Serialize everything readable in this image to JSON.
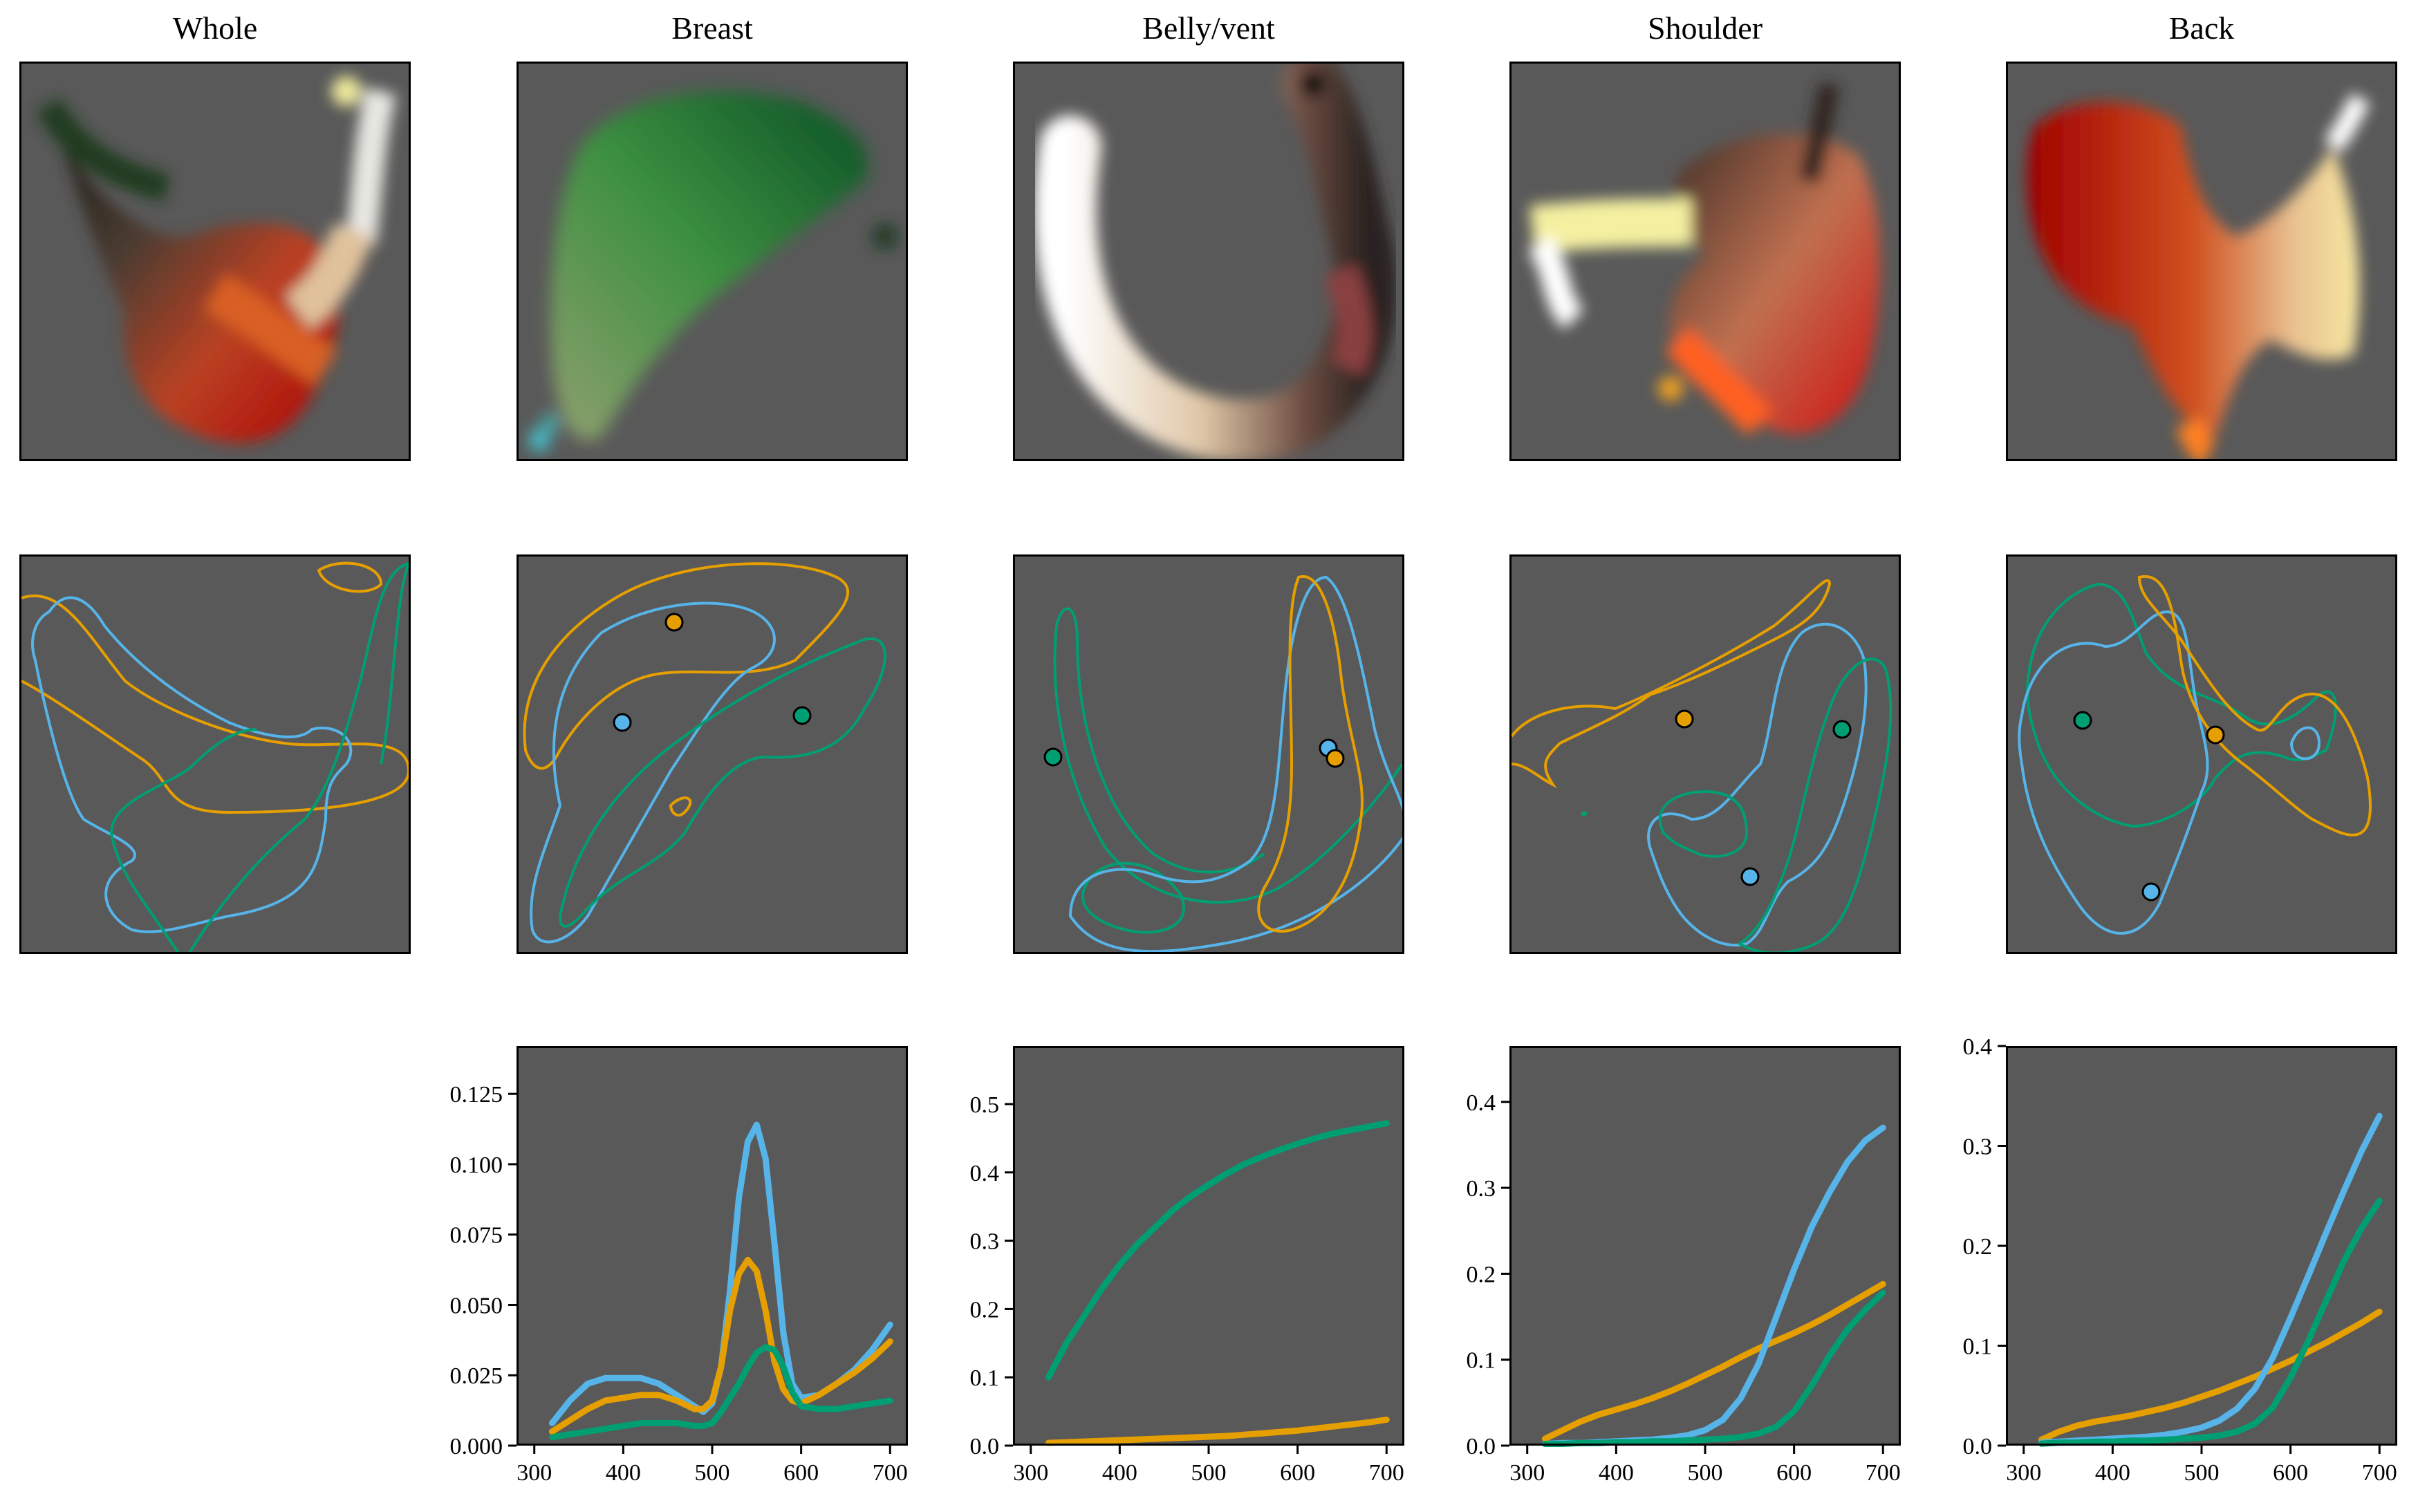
{
  "figure": {
    "columns": [
      {
        "key": "whole",
        "title": "Whole"
      },
      {
        "key": "breast",
        "title": "Breast"
      },
      {
        "key": "belly",
        "title": "Belly/vent"
      },
      {
        "key": "shoulder",
        "title": "Shoulder"
      },
      {
        "key": "back",
        "title": "Back"
      }
    ],
    "colors": {
      "panel_background": "#595959",
      "blue": "#56b4e9",
      "orange": "#e69f00",
      "green": "#009e73"
    }
  },
  "chart_data": [
    {
      "panel": "breast",
      "type": "line",
      "title": "",
      "xlabel": "",
      "ylabel": "",
      "xlim": [
        280,
        720
      ],
      "ylim": [
        0,
        0.142
      ],
      "xticks": [
        300,
        400,
        500,
        600,
        700
      ],
      "yticks": [
        "0.000",
        "0.025",
        "0.050",
        "0.075",
        "0.100",
        "0.125"
      ],
      "x": [
        320,
        340,
        360,
        380,
        400,
        420,
        440,
        460,
        480,
        490,
        500,
        510,
        520,
        530,
        540,
        550,
        560,
        570,
        580,
        590,
        600,
        620,
        640,
        660,
        680,
        700
      ],
      "series": [
        {
          "color": "blue",
          "values": [
            0.008,
            0.016,
            0.022,
            0.024,
            0.024,
            0.024,
            0.022,
            0.018,
            0.014,
            0.012,
            0.015,
            0.028,
            0.055,
            0.088,
            0.108,
            0.114,
            0.102,
            0.072,
            0.04,
            0.022,
            0.017,
            0.018,
            0.022,
            0.027,
            0.034,
            0.043
          ]
        },
        {
          "color": "orange",
          "values": [
            0.005,
            0.009,
            0.013,
            0.016,
            0.017,
            0.018,
            0.018,
            0.016,
            0.013,
            0.013,
            0.016,
            0.028,
            0.048,
            0.061,
            0.066,
            0.062,
            0.048,
            0.03,
            0.02,
            0.016,
            0.015,
            0.018,
            0.022,
            0.026,
            0.031,
            0.037
          ]
        },
        {
          "color": "green",
          "values": [
            0.003,
            0.004,
            0.005,
            0.006,
            0.007,
            0.008,
            0.008,
            0.008,
            0.007,
            0.007,
            0.008,
            0.012,
            0.017,
            0.022,
            0.028,
            0.033,
            0.035,
            0.034,
            0.028,
            0.019,
            0.014,
            0.013,
            0.013,
            0.014,
            0.015,
            0.016
          ]
        }
      ]
    },
    {
      "panel": "belly",
      "type": "line",
      "title": "",
      "xlabel": "",
      "ylabel": "",
      "xlim": [
        280,
        720
      ],
      "ylim": [
        0,
        0.585
      ],
      "xticks": [
        300,
        400,
        500,
        600,
        700
      ],
      "yticks": [
        "0.0",
        "0.1",
        "0.2",
        "0.3",
        "0.4",
        "0.5"
      ],
      "x": [
        320,
        340,
        360,
        380,
        400,
        420,
        440,
        460,
        480,
        500,
        520,
        540,
        560,
        580,
        600,
        620,
        640,
        660,
        680,
        700
      ],
      "series": [
        {
          "color": "green",
          "values": [
            0.1,
            0.15,
            0.19,
            0.23,
            0.265,
            0.295,
            0.32,
            0.345,
            0.365,
            0.382,
            0.398,
            0.412,
            0.423,
            0.433,
            0.442,
            0.45,
            0.457,
            0.462,
            0.467,
            0.472
          ]
        },
        {
          "color": "orange",
          "values": [
            0.004,
            0.005,
            0.006,
            0.007,
            0.008,
            0.009,
            0.01,
            0.011,
            0.012,
            0.013,
            0.014,
            0.016,
            0.018,
            0.02,
            0.022,
            0.025,
            0.028,
            0.031,
            0.034,
            0.038
          ]
        }
      ]
    },
    {
      "panel": "shoulder",
      "type": "line",
      "title": "",
      "xlabel": "",
      "ylabel": "",
      "xlim": [
        280,
        720
      ],
      "ylim": [
        0,
        0.465
      ],
      "xticks": [
        300,
        400,
        500,
        600,
        700
      ],
      "yticks": [
        "0.0",
        "0.1",
        "0.2",
        "0.3",
        "0.4"
      ],
      "x": [
        320,
        340,
        360,
        380,
        400,
        420,
        440,
        460,
        480,
        500,
        520,
        540,
        560,
        580,
        600,
        620,
        640,
        660,
        680,
        700
      ],
      "series": [
        {
          "color": "orange",
          "values": [
            0.008,
            0.018,
            0.028,
            0.036,
            0.042,
            0.048,
            0.055,
            0.063,
            0.072,
            0.082,
            0.092,
            0.103,
            0.113,
            0.122,
            0.131,
            0.141,
            0.152,
            0.164,
            0.176,
            0.188
          ]
        },
        {
          "color": "blue",
          "values": [
            0.002,
            0.003,
            0.003,
            0.004,
            0.005,
            0.006,
            0.007,
            0.009,
            0.012,
            0.018,
            0.03,
            0.055,
            0.095,
            0.15,
            0.205,
            0.255,
            0.295,
            0.33,
            0.355,
            0.37
          ]
        },
        {
          "color": "green",
          "values": [
            0.002,
            0.002,
            0.003,
            0.003,
            0.004,
            0.004,
            0.005,
            0.005,
            0.006,
            0.007,
            0.008,
            0.01,
            0.014,
            0.022,
            0.04,
            0.07,
            0.105,
            0.135,
            0.158,
            0.178
          ]
        }
      ]
    },
    {
      "panel": "back",
      "type": "line",
      "title": "",
      "xlabel": "",
      "ylabel": "",
      "xlim": [
        280,
        720
      ],
      "ylim": [
        0,
        0.4
      ],
      "xticks": [
        300,
        400,
        500,
        600,
        700
      ],
      "yticks": [
        "0.0",
        "0.1",
        "0.2",
        "0.3",
        "0.4"
      ],
      "x": [
        320,
        340,
        360,
        380,
        400,
        420,
        440,
        460,
        480,
        500,
        520,
        540,
        560,
        580,
        600,
        620,
        640,
        660,
        680,
        700
      ],
      "series": [
        {
          "color": "orange",
          "values": [
            0.006,
            0.014,
            0.02,
            0.024,
            0.027,
            0.03,
            0.034,
            0.038,
            0.043,
            0.049,
            0.055,
            0.062,
            0.069,
            0.077,
            0.085,
            0.094,
            0.103,
            0.113,
            0.123,
            0.134
          ]
        },
        {
          "color": "blue",
          "values": [
            0.003,
            0.004,
            0.005,
            0.006,
            0.007,
            0.008,
            0.009,
            0.011,
            0.014,
            0.018,
            0.025,
            0.037,
            0.057,
            0.088,
            0.128,
            0.17,
            0.213,
            0.255,
            0.295,
            0.33
          ]
        },
        {
          "color": "green",
          "values": [
            0.002,
            0.003,
            0.003,
            0.004,
            0.004,
            0.005,
            0.005,
            0.006,
            0.007,
            0.008,
            0.01,
            0.014,
            0.022,
            0.038,
            0.068,
            0.105,
            0.145,
            0.185,
            0.218,
            0.245
          ]
        }
      ]
    }
  ]
}
